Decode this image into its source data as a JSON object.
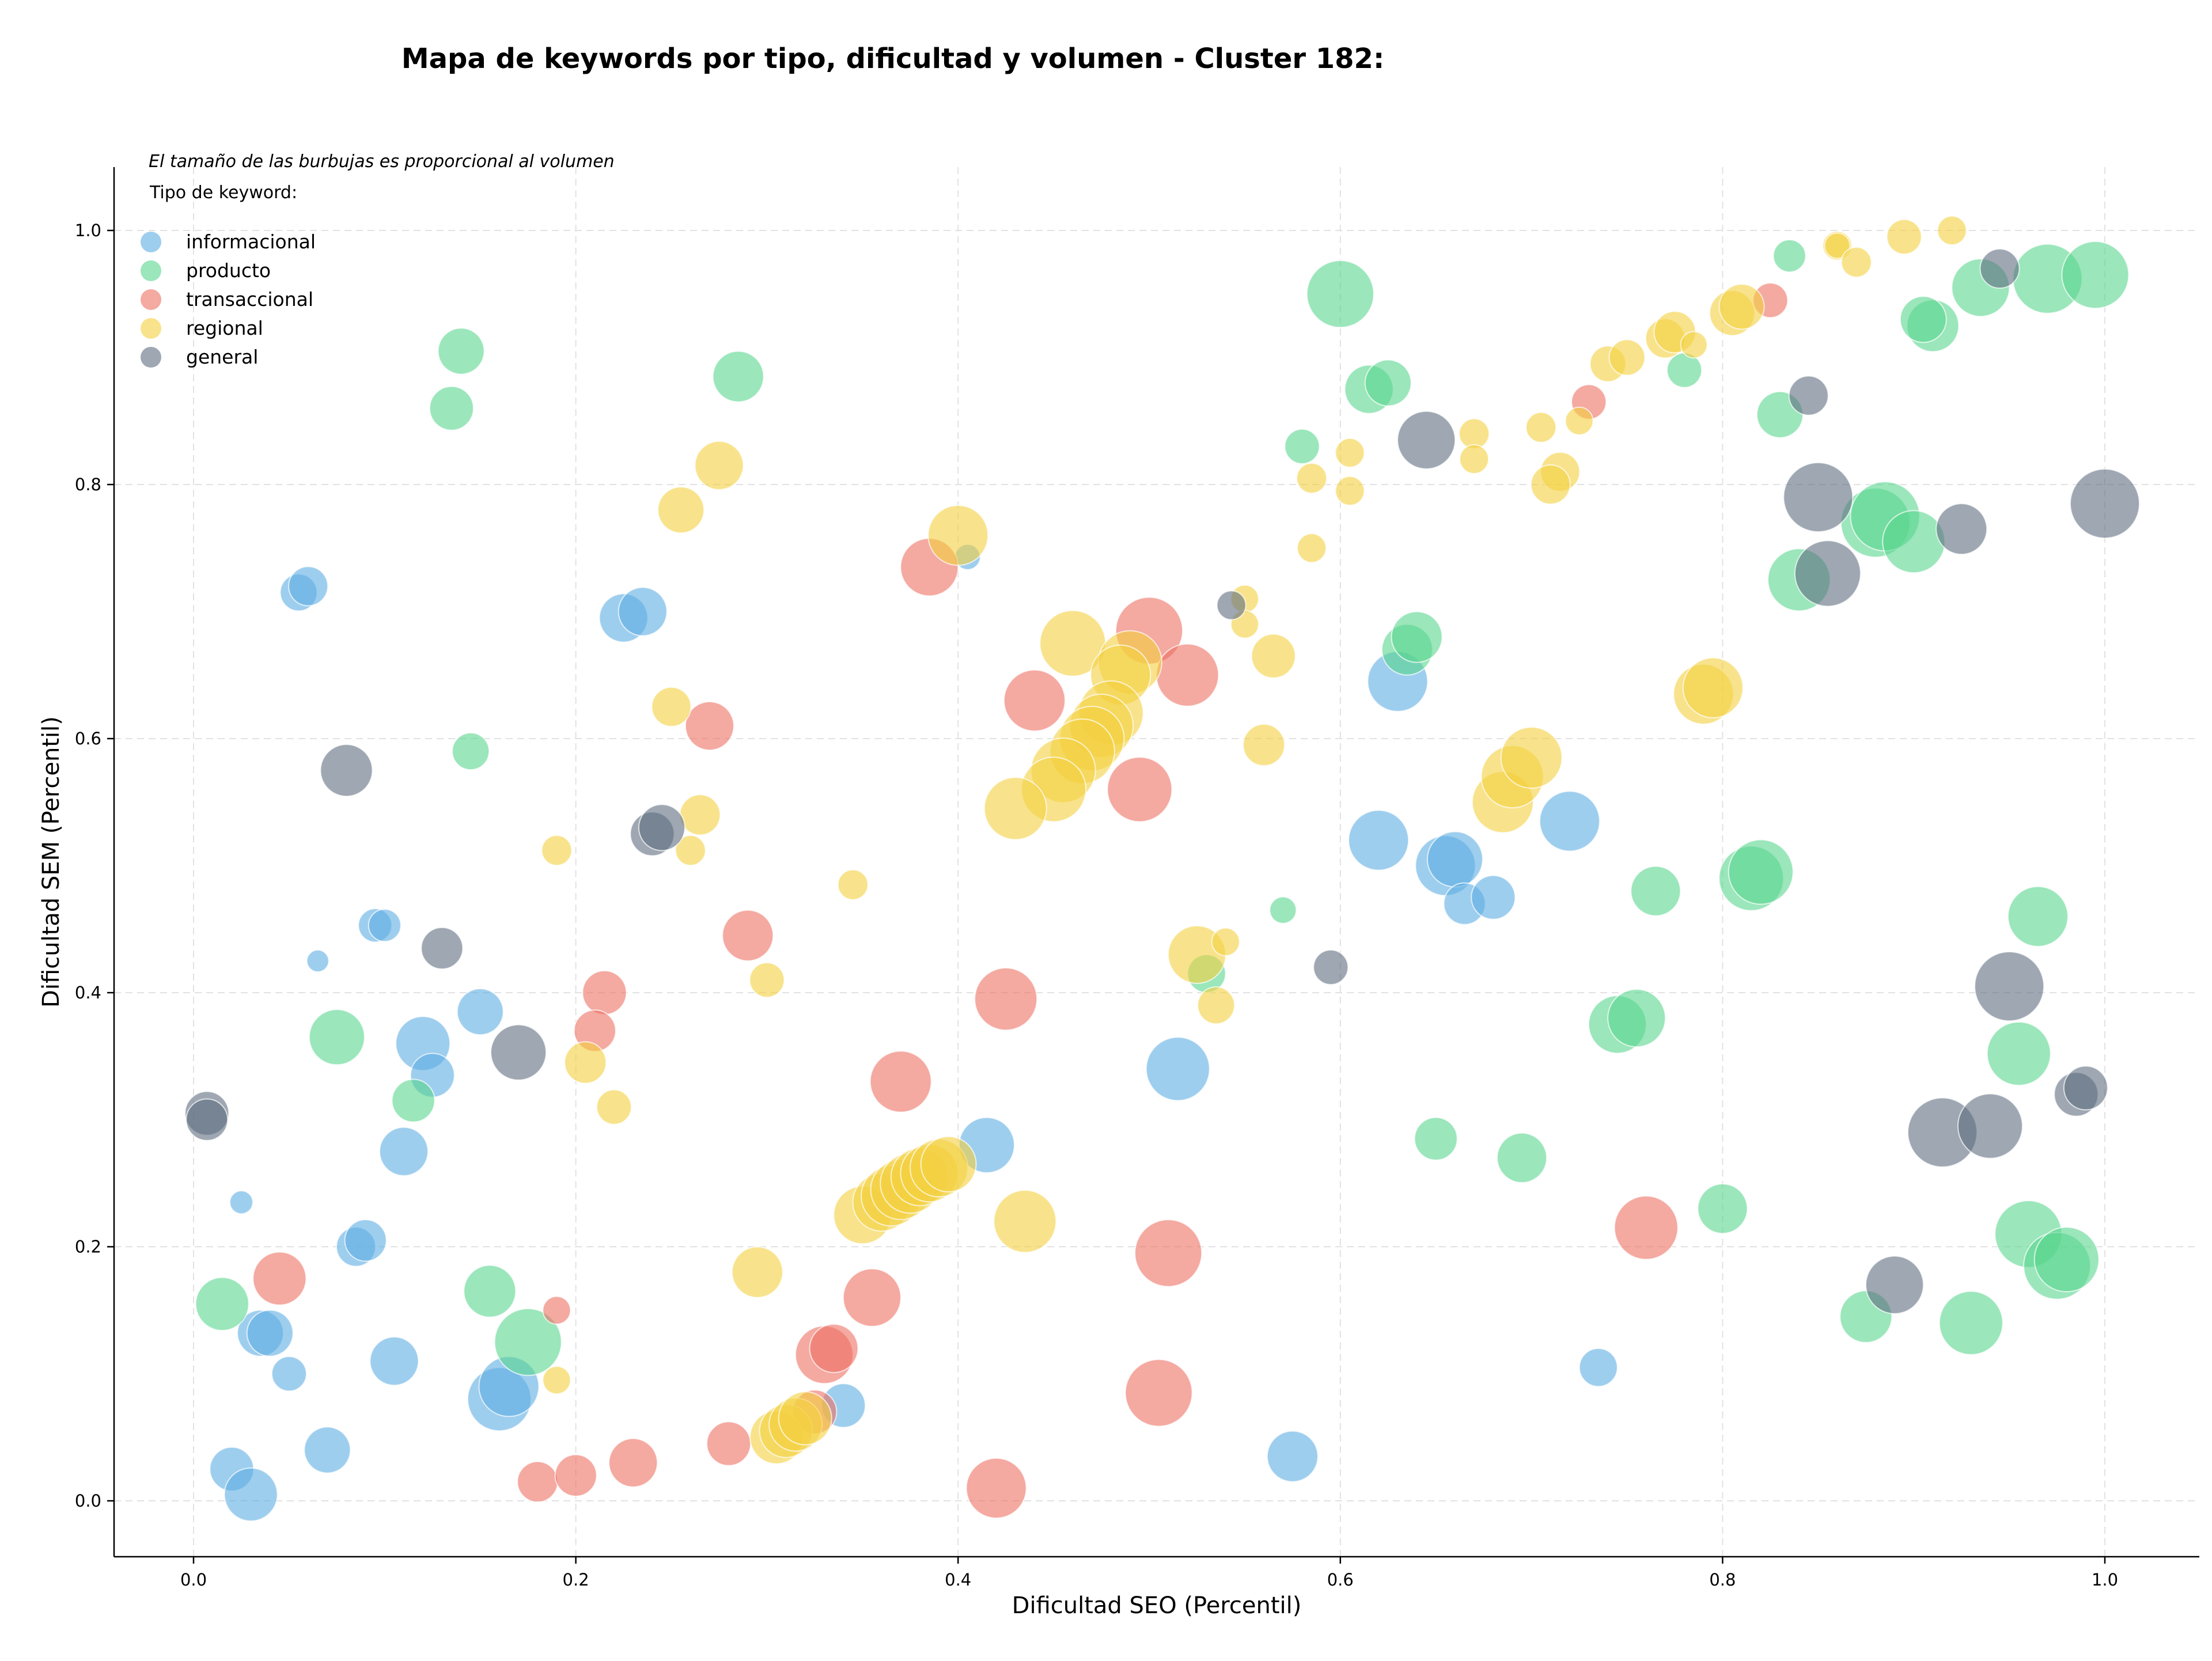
{
  "chart_data": {
    "type": "scatter",
    "title": "Mapa de keywords por tipo, dificultad y volumen - Cluster 182:",
    "xlabel": "Dificultad SEO (Percentil)",
    "ylabel": "Dificultad SEM (Percentil)",
    "xlim": [
      -0.04,
      1.05
    ],
    "ylim": [
      -0.045,
      1.05
    ],
    "xticks": [
      "0.0",
      "0.2",
      "0.4",
      "0.6",
      "0.8",
      "1.0"
    ],
    "yticks": [
      "0.0",
      "0.2",
      "0.4",
      "0.6",
      "0.8",
      "1.0"
    ],
    "grid": true,
    "size_note": "El tamaño de las burbujas es proporcional al volumen",
    "legend_title": "Tipo de keyword:",
    "legend_placement": "top-left",
    "series": [
      {
        "name": "informacional",
        "color": "#5DADE2",
        "points": [
          [
            0.055,
            0.715,
            32
          ],
          [
            0.06,
            0.72,
            34
          ],
          [
            0.225,
            0.695,
            42
          ],
          [
            0.235,
            0.7,
            42
          ],
          [
            0.405,
            0.743,
            22
          ],
          [
            0.065,
            0.425,
            19
          ],
          [
            0.095,
            0.453,
            29
          ],
          [
            0.1,
            0.453,
            28
          ],
          [
            0.15,
            0.385,
            40
          ],
          [
            0.12,
            0.36,
            47
          ],
          [
            0.125,
            0.335,
            38
          ],
          [
            0.11,
            0.275,
            42
          ],
          [
            0.025,
            0.235,
            20
          ],
          [
            0.085,
            0.2,
            34
          ],
          [
            0.09,
            0.205,
            36
          ],
          [
            0.035,
            0.132,
            40
          ],
          [
            0.04,
            0.132,
            40
          ],
          [
            0.05,
            0.1,
            30
          ],
          [
            0.105,
            0.11,
            42
          ],
          [
            0.16,
            0.08,
            55
          ],
          [
            0.165,
            0.09,
            52
          ],
          [
            0.02,
            0.025,
            38
          ],
          [
            0.03,
            0.005,
            46
          ],
          [
            0.07,
            0.04,
            40
          ],
          [
            0.34,
            0.075,
            38
          ],
          [
            0.415,
            0.28,
            48
          ],
          [
            0.515,
            0.34,
            55
          ],
          [
            0.575,
            0.035,
            44
          ],
          [
            0.63,
            0.645,
            52
          ],
          [
            0.62,
            0.52,
            52
          ],
          [
            0.655,
            0.5,
            52
          ],
          [
            0.66,
            0.505,
            48
          ],
          [
            0.665,
            0.47,
            36
          ],
          [
            0.68,
            0.475,
            38
          ],
          [
            0.72,
            0.535,
            52
          ],
          [
            0.735,
            0.105,
            33
          ]
        ]
      },
      {
        "name": "producto",
        "color": "#58D68D",
        "points": [
          [
            0.14,
            0.905,
            40
          ],
          [
            0.135,
            0.86,
            38
          ],
          [
            0.285,
            0.885,
            44
          ],
          [
            0.145,
            0.59,
            32
          ],
          [
            0.075,
            0.365,
            48
          ],
          [
            0.115,
            0.315,
            37
          ],
          [
            0.015,
            0.155,
            46
          ],
          [
            0.155,
            0.165,
            45
          ],
          [
            0.175,
            0.125,
            58
          ],
          [
            0.6,
            0.95,
            58
          ],
          [
            0.615,
            0.875,
            42
          ],
          [
            0.625,
            0.88,
            40
          ],
          [
            0.58,
            0.83,
            30
          ],
          [
            0.635,
            0.67,
            44
          ],
          [
            0.64,
            0.68,
            44
          ],
          [
            0.57,
            0.465,
            23
          ],
          [
            0.53,
            0.415,
            33
          ],
          [
            0.65,
            0.285,
            37
          ],
          [
            0.695,
            0.27,
            43
          ],
          [
            0.78,
            0.89,
            30
          ],
          [
            0.835,
            0.98,
            28
          ],
          [
            0.83,
            0.855,
            40
          ],
          [
            0.84,
            0.725,
            54
          ],
          [
            0.765,
            0.48,
            43
          ],
          [
            0.745,
            0.375,
            50
          ],
          [
            0.755,
            0.38,
            50
          ],
          [
            0.815,
            0.49,
            56
          ],
          [
            0.82,
            0.495,
            56
          ],
          [
            0.8,
            0.23,
            43
          ],
          [
            0.875,
            0.145,
            45
          ],
          [
            0.93,
            0.14,
            55
          ],
          [
            0.955,
            0.352,
            55
          ],
          [
            0.965,
            0.46,
            52
          ],
          [
            0.96,
            0.21,
            58
          ],
          [
            0.975,
            0.185,
            58
          ],
          [
            0.98,
            0.19,
            56
          ],
          [
            0.91,
            0.925,
            45
          ],
          [
            0.905,
            0.93,
            40
          ],
          [
            0.935,
            0.955,
            50
          ],
          [
            0.97,
            0.962,
            60
          ],
          [
            0.995,
            0.965,
            58
          ],
          [
            0.88,
            0.77,
            60
          ],
          [
            0.885,
            0.775,
            60
          ],
          [
            0.9,
            0.755,
            54
          ]
        ]
      },
      {
        "name": "transaccional",
        "color": "#EC7063",
        "points": [
          [
            0.385,
            0.735,
            50
          ],
          [
            0.5,
            0.685,
            58
          ],
          [
            0.52,
            0.65,
            54
          ],
          [
            0.44,
            0.63,
            53
          ],
          [
            0.495,
            0.56,
            56
          ],
          [
            0.27,
            0.61,
            42
          ],
          [
            0.29,
            0.445,
            44
          ],
          [
            0.215,
            0.4,
            38
          ],
          [
            0.21,
            0.37,
            36
          ],
          [
            0.37,
            0.33,
            53
          ],
          [
            0.425,
            0.395,
            54
          ],
          [
            0.045,
            0.175,
            46
          ],
          [
            0.19,
            0.15,
            24
          ],
          [
            0.355,
            0.16,
            50
          ],
          [
            0.33,
            0.115,
            50
          ],
          [
            0.335,
            0.12,
            42
          ],
          [
            0.325,
            0.07,
            38
          ],
          [
            0.28,
            0.045,
            38
          ],
          [
            0.23,
            0.03,
            42
          ],
          [
            0.18,
            0.015,
            35
          ],
          [
            0.2,
            0.02,
            36
          ],
          [
            0.42,
            0.01,
            52
          ],
          [
            0.505,
            0.085,
            58
          ],
          [
            0.51,
            0.195,
            58
          ],
          [
            0.76,
            0.215,
            55
          ],
          [
            0.73,
            0.865,
            30
          ],
          [
            0.825,
            0.945,
            30
          ]
        ]
      },
      {
        "name": "regional",
        "color": "#F4D03F",
        "points": [
          [
            0.275,
            0.815,
            42
          ],
          [
            0.255,
            0.78,
            40
          ],
          [
            0.4,
            0.76,
            52
          ],
          [
            0.25,
            0.625,
            34
          ],
          [
            0.265,
            0.54,
            35
          ],
          [
            0.26,
            0.512,
            26
          ],
          [
            0.19,
            0.512,
            26
          ],
          [
            0.345,
            0.485,
            26
          ],
          [
            0.3,
            0.41,
            30
          ],
          [
            0.205,
            0.345,
            36
          ],
          [
            0.22,
            0.31,
            30
          ],
          [
            0.295,
            0.18,
            44
          ],
          [
            0.19,
            0.095,
            24
          ],
          [
            0.46,
            0.675,
            57
          ],
          [
            0.49,
            0.66,
            55
          ],
          [
            0.485,
            0.65,
            52
          ],
          [
            0.48,
            0.62,
            56
          ],
          [
            0.475,
            0.61,
            55
          ],
          [
            0.47,
            0.6,
            56
          ],
          [
            0.465,
            0.59,
            56
          ],
          [
            0.455,
            0.575,
            56
          ],
          [
            0.45,
            0.56,
            56
          ],
          [
            0.43,
            0.545,
            54
          ],
          [
            0.435,
            0.22,
            54
          ],
          [
            0.35,
            0.225,
            50
          ],
          [
            0.36,
            0.235,
            50
          ],
          [
            0.365,
            0.24,
            52
          ],
          [
            0.37,
            0.245,
            52
          ],
          [
            0.375,
            0.25,
            52
          ],
          [
            0.38,
            0.255,
            50
          ],
          [
            0.385,
            0.258,
            50
          ],
          [
            0.39,
            0.262,
            50
          ],
          [
            0.395,
            0.265,
            48
          ],
          [
            0.305,
            0.05,
            46
          ],
          [
            0.31,
            0.055,
            46
          ],
          [
            0.315,
            0.06,
            46
          ],
          [
            0.32,
            0.065,
            46
          ],
          [
            0.525,
            0.43,
            50
          ],
          [
            0.535,
            0.39,
            32
          ],
          [
            0.54,
            0.44,
            24
          ],
          [
            0.55,
            0.71,
            24
          ],
          [
            0.55,
            0.69,
            24
          ],
          [
            0.565,
            0.665,
            38
          ],
          [
            0.56,
            0.595,
            36
          ],
          [
            0.585,
            0.805,
            26
          ],
          [
            0.585,
            0.75,
            25
          ],
          [
            0.605,
            0.825,
            25
          ],
          [
            0.605,
            0.795,
            25
          ],
          [
            0.67,
            0.84,
            26
          ],
          [
            0.67,
            0.82,
            25
          ],
          [
            0.705,
            0.845,
            26
          ],
          [
            0.715,
            0.81,
            34
          ],
          [
            0.71,
            0.8,
            34
          ],
          [
            0.725,
            0.85,
            24
          ],
          [
            0.74,
            0.895,
            31
          ],
          [
            0.75,
            0.9,
            31
          ],
          [
            0.77,
            0.915,
            34
          ],
          [
            0.775,
            0.92,
            36
          ],
          [
            0.785,
            0.91,
            23
          ],
          [
            0.805,
            0.935,
            39
          ],
          [
            0.81,
            0.94,
            39
          ],
          [
            0.79,
            0.635,
            52
          ],
          [
            0.795,
            0.64,
            52
          ],
          [
            0.685,
            0.55,
            53
          ],
          [
            0.69,
            0.57,
            54
          ],
          [
            0.7,
            0.585,
            53
          ],
          [
            0.86,
            0.988,
            25
          ],
          [
            0.86,
            0.988,
            22
          ],
          [
            0.87,
            0.975,
            26
          ],
          [
            0.895,
            0.995,
            30
          ],
          [
            0.92,
            1.0,
            25
          ]
        ]
      },
      {
        "name": "general",
        "color": "#5D6D7E",
        "points": [
          [
            0.08,
            0.575,
            45
          ],
          [
            0.13,
            0.435,
            36
          ],
          [
            0.17,
            0.353,
            48
          ],
          [
            0.24,
            0.525,
            38
          ],
          [
            0.245,
            0.53,
            40
          ],
          [
            0.007,
            0.305,
            38
          ],
          [
            0.007,
            0.3,
            36
          ],
          [
            0.543,
            0.705,
            25
          ],
          [
            0.595,
            0.42,
            30
          ],
          [
            0.645,
            0.835,
            50
          ],
          [
            0.845,
            0.87,
            34
          ],
          [
            0.85,
            0.79,
            60
          ],
          [
            0.855,
            0.73,
            57
          ],
          [
            0.925,
            0.765,
            44
          ],
          [
            0.945,
            0.97,
            34
          ],
          [
            1.0,
            0.785,
            60
          ],
          [
            0.95,
            0.405,
            60
          ],
          [
            0.915,
            0.29,
            60
          ],
          [
            0.94,
            0.295,
            56
          ],
          [
            0.89,
            0.17,
            50
          ],
          [
            0.985,
            0.32,
            38
          ],
          [
            0.99,
            0.325,
            38
          ]
        ]
      }
    ]
  }
}
